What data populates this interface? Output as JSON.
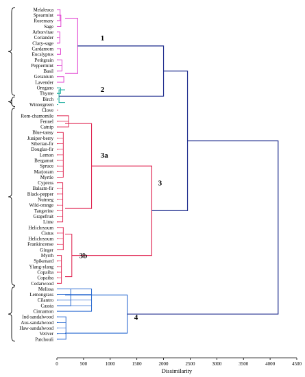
{
  "chart_data": {
    "type": "dendrogram",
    "orientation": "horizontal",
    "xlabel": "Dissimilarity",
    "xlim": [
      0,
      4500
    ],
    "xticks": [
      0,
      500,
      1000,
      1500,
      2000,
      2500,
      3000,
      3500,
      4000,
      4500
    ],
    "leaves": [
      "Melaleuca",
      "Spearmint",
      "Rosemary",
      "Sage",
      "Arborvitae",
      "Coriander",
      "Clary-sage",
      "Cardamom",
      "Eucalyptus",
      "Petitgrain",
      "Peppermint",
      "Basil",
      "Geranium",
      "Lavender",
      "Oregano",
      "Thyme",
      "Birch",
      "Wintergreen",
      "Clove",
      "Rom-chamomile",
      "Fennel",
      "Catnip",
      "Blue-tansy",
      "Juniper-berry",
      "Siberian-fir",
      "Douglas-fir",
      "Lemon",
      "Bergamot",
      "Spruce",
      "Marjoram",
      "Myrtle",
      "Cypress",
      "Balsam-fir",
      "Black-pepper",
      "Nutmeg",
      "Wild-orange",
      "Tangerine",
      "Grapefruit",
      "Lime",
      "Helichrysum",
      "Cistus",
      "Helichrysum",
      "Frankincense",
      "Ginger",
      "Myrrh",
      "Spikenard",
      "Ylang-ylang",
      "Copaiba",
      "Copaiba",
      "Cedarwood",
      "Melissa",
      "Lemongrass",
      "Cilantro",
      "Cassia",
      "Cinnamon",
      "Ind-sandalwood",
      "Aus-sandalwood",
      "Haw-sandalwood",
      "Vetiver",
      "Patchouli"
    ],
    "clusters": [
      {
        "label": "1",
        "color": "#e040d0",
        "leaf_range": [
          0,
          13
        ],
        "merge_height": 390,
        "segments": [
          [
            0,
            2,
            60
          ],
          [
            1,
            3,
            75
          ],
          [
            4,
            6,
            55
          ],
          [
            7,
            8,
            70
          ],
          [
            9,
            11,
            95
          ],
          [
            12,
            13,
            130
          ]
        ]
      },
      {
        "label": "2",
        "color": "#20b0a0",
        "leaf_range": [
          14,
          17
        ],
        "merge_height": 40,
        "segments": [
          [
            14,
            15,
            70
          ]
        ]
      },
      {
        "label": "3a",
        "color": "#e02a55",
        "leaf_range": [
          18,
          38
        ],
        "merge_height": 650,
        "segments": [
          [
            19,
            21,
            220
          ],
          [
            22,
            30,
            120
          ],
          [
            31,
            38,
            110
          ]
        ]
      },
      {
        "label": "3b",
        "color": "#e02a55",
        "leaf_range": [
          39,
          49
        ],
        "merge_height": 280,
        "segments": [
          [
            39,
            43,
            120
          ],
          [
            44,
            49,
            85
          ]
        ]
      },
      {
        "label": "4",
        "color": "#2a6ad0",
        "leaf_range": [
          50,
          59
        ],
        "merge_height": 1320,
        "segments": [
          [
            50,
            53,
            260
          ],
          [
            50,
            54,
            650
          ],
          [
            55,
            59,
            170
          ]
        ]
      }
    ],
    "links": [
      {
        "join": [
          "1",
          "2"
        ],
        "height": 2000
      },
      {
        "join": [
          "3a",
          "3b"
        ],
        "height": 1780
      },
      {
        "join": [
          "3a+3b",
          "1+2"
        ],
        "height": 2450
      },
      {
        "join": [
          "all-but-4",
          "4"
        ],
        "height": 4150
      }
    ],
    "colors": {
      "cluster_1": "#e040d0",
      "cluster_2": "#20b0a0",
      "cluster_3": "#e02a55",
      "cluster_4": "#2a6ad0",
      "top_links": "#1c2a8c"
    }
  }
}
